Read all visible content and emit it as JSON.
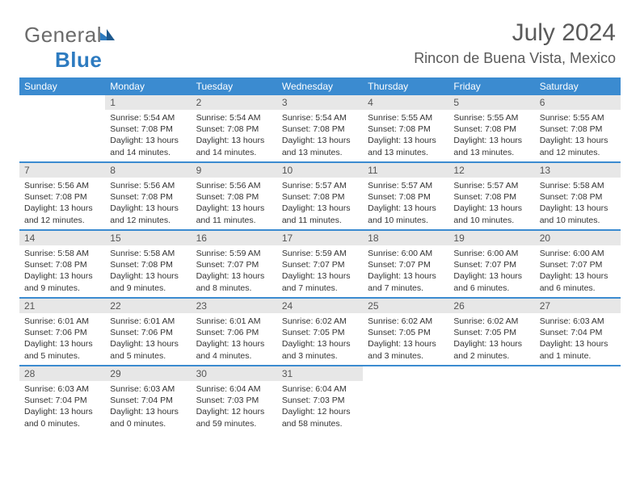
{
  "logo": {
    "word1": "General",
    "word2": "Blue"
  },
  "title": "July 2024",
  "subtitle": "Rincon de Buena Vista, Mexico",
  "colors": {
    "header_bg": "#3b8bd0",
    "header_text": "#ffffff",
    "num_bg": "#e7e7e7",
    "num_text": "#555555",
    "body_text": "#333333",
    "title_text": "#5a5a5a",
    "week_border": "#3b8bd0",
    "logo_gray": "#6b6b6b",
    "logo_blue": "#2d7bc0"
  },
  "fonts": {
    "title_size": 30,
    "subtitle_size": 18,
    "dayhead_size": 12,
    "num_size": 12,
    "body_size": 10.5
  },
  "dayNames": [
    "Sunday",
    "Monday",
    "Tuesday",
    "Wednesday",
    "Thursday",
    "Friday",
    "Saturday"
  ],
  "startOffset": 1,
  "days": [
    {
      "n": 1,
      "sunrise": "5:54 AM",
      "sunset": "7:08 PM",
      "daylight": "13 hours and 14 minutes."
    },
    {
      "n": 2,
      "sunrise": "5:54 AM",
      "sunset": "7:08 PM",
      "daylight": "13 hours and 14 minutes."
    },
    {
      "n": 3,
      "sunrise": "5:54 AM",
      "sunset": "7:08 PM",
      "daylight": "13 hours and 13 minutes."
    },
    {
      "n": 4,
      "sunrise": "5:55 AM",
      "sunset": "7:08 PM",
      "daylight": "13 hours and 13 minutes."
    },
    {
      "n": 5,
      "sunrise": "5:55 AM",
      "sunset": "7:08 PM",
      "daylight": "13 hours and 13 minutes."
    },
    {
      "n": 6,
      "sunrise": "5:55 AM",
      "sunset": "7:08 PM",
      "daylight": "13 hours and 12 minutes."
    },
    {
      "n": 7,
      "sunrise": "5:56 AM",
      "sunset": "7:08 PM",
      "daylight": "13 hours and 12 minutes."
    },
    {
      "n": 8,
      "sunrise": "5:56 AM",
      "sunset": "7:08 PM",
      "daylight": "13 hours and 12 minutes."
    },
    {
      "n": 9,
      "sunrise": "5:56 AM",
      "sunset": "7:08 PM",
      "daylight": "13 hours and 11 minutes."
    },
    {
      "n": 10,
      "sunrise": "5:57 AM",
      "sunset": "7:08 PM",
      "daylight": "13 hours and 11 minutes."
    },
    {
      "n": 11,
      "sunrise": "5:57 AM",
      "sunset": "7:08 PM",
      "daylight": "13 hours and 10 minutes."
    },
    {
      "n": 12,
      "sunrise": "5:57 AM",
      "sunset": "7:08 PM",
      "daylight": "13 hours and 10 minutes."
    },
    {
      "n": 13,
      "sunrise": "5:58 AM",
      "sunset": "7:08 PM",
      "daylight": "13 hours and 10 minutes."
    },
    {
      "n": 14,
      "sunrise": "5:58 AM",
      "sunset": "7:08 PM",
      "daylight": "13 hours and 9 minutes."
    },
    {
      "n": 15,
      "sunrise": "5:58 AM",
      "sunset": "7:08 PM",
      "daylight": "13 hours and 9 minutes."
    },
    {
      "n": 16,
      "sunrise": "5:59 AM",
      "sunset": "7:07 PM",
      "daylight": "13 hours and 8 minutes."
    },
    {
      "n": 17,
      "sunrise": "5:59 AM",
      "sunset": "7:07 PM",
      "daylight": "13 hours and 7 minutes."
    },
    {
      "n": 18,
      "sunrise": "6:00 AM",
      "sunset": "7:07 PM",
      "daylight": "13 hours and 7 minutes."
    },
    {
      "n": 19,
      "sunrise": "6:00 AM",
      "sunset": "7:07 PM",
      "daylight": "13 hours and 6 minutes."
    },
    {
      "n": 20,
      "sunrise": "6:00 AM",
      "sunset": "7:07 PM",
      "daylight": "13 hours and 6 minutes."
    },
    {
      "n": 21,
      "sunrise": "6:01 AM",
      "sunset": "7:06 PM",
      "daylight": "13 hours and 5 minutes."
    },
    {
      "n": 22,
      "sunrise": "6:01 AM",
      "sunset": "7:06 PM",
      "daylight": "13 hours and 5 minutes."
    },
    {
      "n": 23,
      "sunrise": "6:01 AM",
      "sunset": "7:06 PM",
      "daylight": "13 hours and 4 minutes."
    },
    {
      "n": 24,
      "sunrise": "6:02 AM",
      "sunset": "7:05 PM",
      "daylight": "13 hours and 3 minutes."
    },
    {
      "n": 25,
      "sunrise": "6:02 AM",
      "sunset": "7:05 PM",
      "daylight": "13 hours and 3 minutes."
    },
    {
      "n": 26,
      "sunrise": "6:02 AM",
      "sunset": "7:05 PM",
      "daylight": "13 hours and 2 minutes."
    },
    {
      "n": 27,
      "sunrise": "6:03 AM",
      "sunset": "7:04 PM",
      "daylight": "13 hours and 1 minute."
    },
    {
      "n": 28,
      "sunrise": "6:03 AM",
      "sunset": "7:04 PM",
      "daylight": "13 hours and 0 minutes."
    },
    {
      "n": 29,
      "sunrise": "6:03 AM",
      "sunset": "7:04 PM",
      "daylight": "13 hours and 0 minutes."
    },
    {
      "n": 30,
      "sunrise": "6:04 AM",
      "sunset": "7:03 PM",
      "daylight": "12 hours and 59 minutes."
    },
    {
      "n": 31,
      "sunrise": "6:04 AM",
      "sunset": "7:03 PM",
      "daylight": "12 hours and 58 minutes."
    }
  ]
}
